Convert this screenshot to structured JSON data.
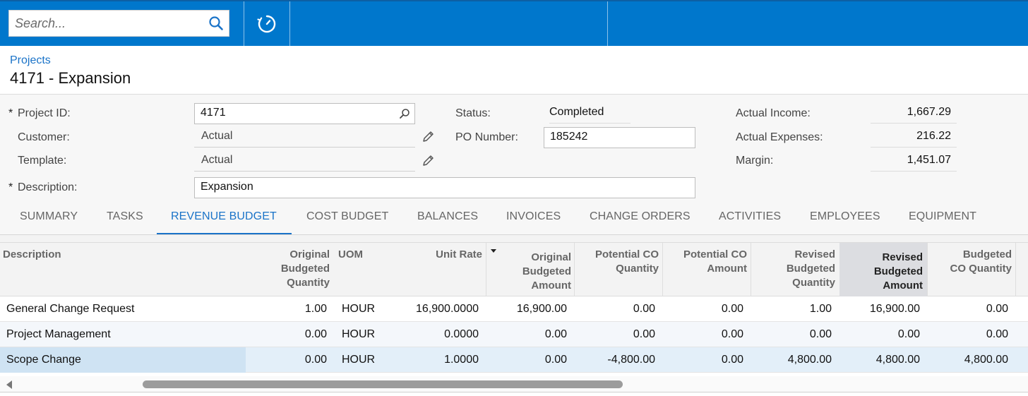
{
  "topbar": {
    "search_placeholder": "Search...",
    "search_icon": "search-icon",
    "timer_icon": "timer-icon",
    "bg_color": "#0077cc"
  },
  "header": {
    "breadcrumb": "Projects",
    "title": "4171 - Expansion"
  },
  "form": {
    "project_id_label": "Project ID:",
    "project_id_value": "4171",
    "customer_label": "Customer:",
    "customer_value": "Actual",
    "template_label": "Template:",
    "template_value": "Actual",
    "description_label": "Description:",
    "description_value": "Expansion",
    "status_label": "Status:",
    "status_value": "Completed",
    "po_label": "PO Number:",
    "po_value": "185242",
    "income_label": "Actual Income:",
    "income_value": "1,667.29",
    "expenses_label": "Actual Expenses:",
    "expenses_value": "216.22",
    "margin_label": "Margin:",
    "margin_value": "1,451.07",
    "required_mark": "*"
  },
  "tabs": [
    "SUMMARY",
    "TASKS",
    "REVENUE BUDGET",
    "COST BUDGET",
    "BALANCES",
    "INVOICES",
    "CHANGE ORDERS",
    "ACTIVITIES",
    "EMPLOYEES",
    "EQUIPMENT"
  ],
  "active_tab": "REVENUE BUDGET",
  "grid": {
    "headers": {
      "description": "Description",
      "orig_qty": [
        "Original",
        "Budgeted",
        "Quantity"
      ],
      "uom": "UOM",
      "unit_rate": "Unit Rate",
      "orig_amount": [
        "Original",
        "Budgeted",
        "Amount"
      ],
      "pot_co_qty": [
        "Potential CO",
        "Quantity"
      ],
      "pot_co_amount": [
        "Potential CO",
        "Amount"
      ],
      "rev_qty": [
        "Revised",
        "Budgeted",
        "Quantity"
      ],
      "rev_amount": [
        "Revised",
        "Budgeted",
        "Amount"
      ],
      "bud_co_qty": [
        "Budgeted",
        "CO Quantity"
      ]
    },
    "rows": [
      {
        "description": "General Change Request",
        "orig_qty": "1.00",
        "uom": "HOUR",
        "unit_rate": "16,900.0000",
        "orig_amount": "16,900.00",
        "pot_co_qty": "0.00",
        "pot_co_amount": "0.00",
        "rev_qty": "1.00",
        "rev_amount": "16,900.00",
        "bud_co_qty": "0.00"
      },
      {
        "description": "Project Management",
        "orig_qty": "0.00",
        "uom": "HOUR",
        "unit_rate": "0.0000",
        "orig_amount": "0.00",
        "pot_co_qty": "0.00",
        "pot_co_amount": "0.00",
        "rev_qty": "0.00",
        "rev_amount": "0.00",
        "bud_co_qty": "0.00"
      },
      {
        "description": "Scope Change",
        "orig_qty": "0.00",
        "uom": "HOUR",
        "unit_rate": "1.0000",
        "orig_amount": "0.00",
        "pot_co_qty": "-4,800.00",
        "pot_co_amount": "0.00",
        "rev_qty": "4,800.00",
        "rev_amount": "4,800.00",
        "bud_co_qty": "4,800.00"
      }
    ]
  }
}
